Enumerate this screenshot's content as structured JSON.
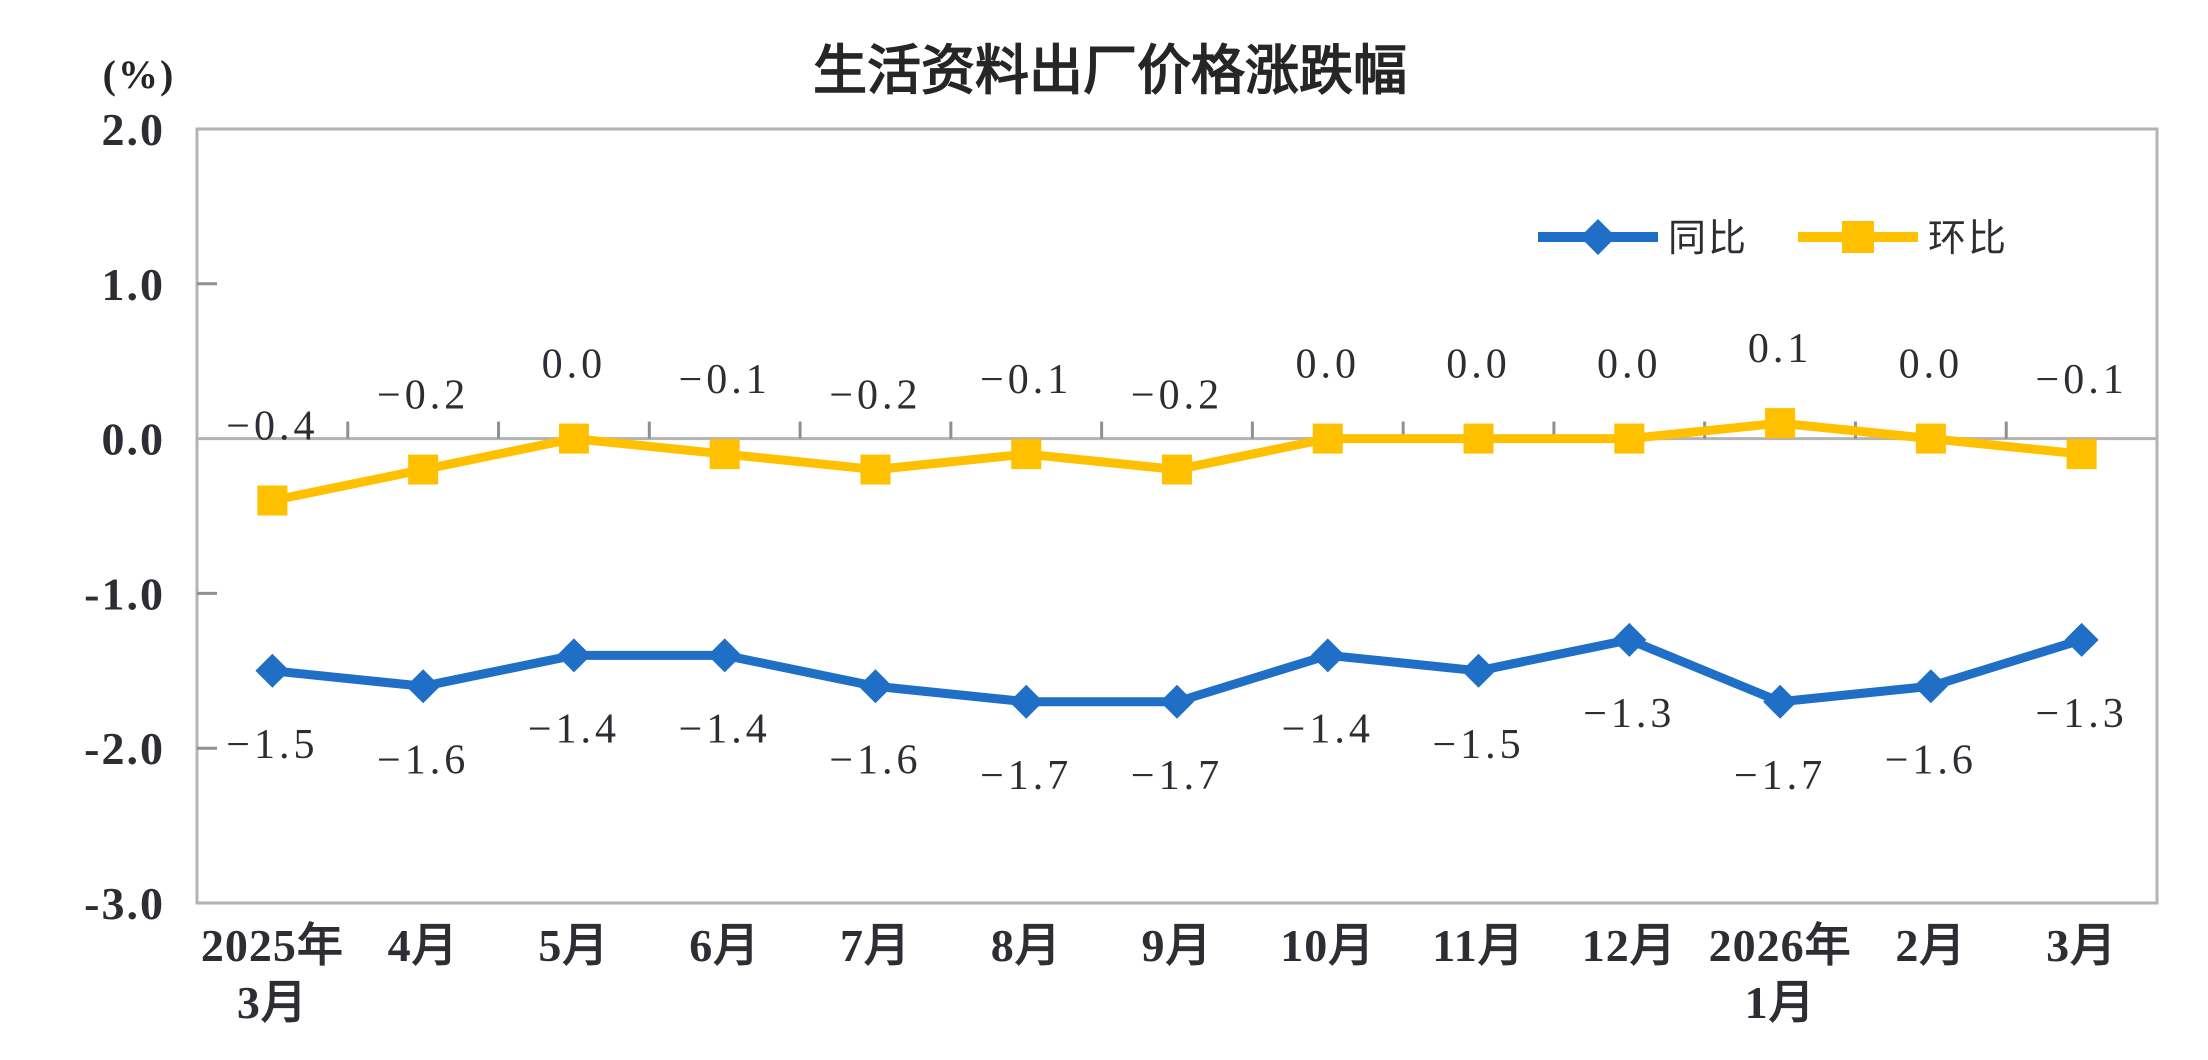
{
  "page": {
    "background": "#ffffff"
  },
  "title": "生活资料出厂价格涨跌幅",
  "y_axis": {
    "unit": "(%)",
    "ticks": [
      "2.0",
      "1.0",
      "0.0",
      "-1.0",
      "-2.0",
      "-3.0"
    ]
  },
  "legend": {
    "items": [
      {
        "id": "yoy",
        "label": "同比"
      },
      {
        "id": "mom",
        "label": "环比"
      }
    ]
  },
  "chart_data": {
    "type": "line",
    "title": "生活资料出厂价格涨跌幅",
    "ylabel": "(%)",
    "ylim": [
      -3.0,
      2.0
    ],
    "yticks": [
      2.0,
      1.0,
      0.0,
      -1.0,
      -2.0,
      -3.0
    ],
    "categories": [
      [
        "2025年",
        "3月"
      ],
      [
        "4月"
      ],
      [
        "5月"
      ],
      [
        "6月"
      ],
      [
        "7月"
      ],
      [
        "8月"
      ],
      [
        "9月"
      ],
      [
        "10月"
      ],
      [
        "11月"
      ],
      [
        "12月"
      ],
      [
        "2026年",
        "1月"
      ],
      [
        "2月"
      ],
      [
        "3月"
      ]
    ],
    "series": [
      {
        "id": "yoy",
        "name": "同比",
        "color": "#1f6fc6",
        "marker": "diamond",
        "label_side": "below",
        "values": [
          -1.5,
          -1.6,
          -1.4,
          -1.4,
          -1.6,
          -1.7,
          -1.7,
          -1.4,
          -1.5,
          -1.3,
          -1.7,
          -1.6,
          -1.3
        ]
      },
      {
        "id": "mom",
        "name": "环比",
        "color": "#ffc000",
        "marker": "square",
        "label_side": "above",
        "values": [
          -0.4,
          -0.2,
          0.0,
          -0.1,
          -0.2,
          -0.1,
          -0.2,
          0.0,
          0.0,
          0.0,
          0.1,
          0.0,
          -0.1
        ]
      }
    ],
    "grid": "zero-line-only",
    "legend_position": "top-right-inside",
    "axis_color": "#b3b3b3",
    "tick_color": "#8f8f8f",
    "text_color": "#2d2d33"
  }
}
